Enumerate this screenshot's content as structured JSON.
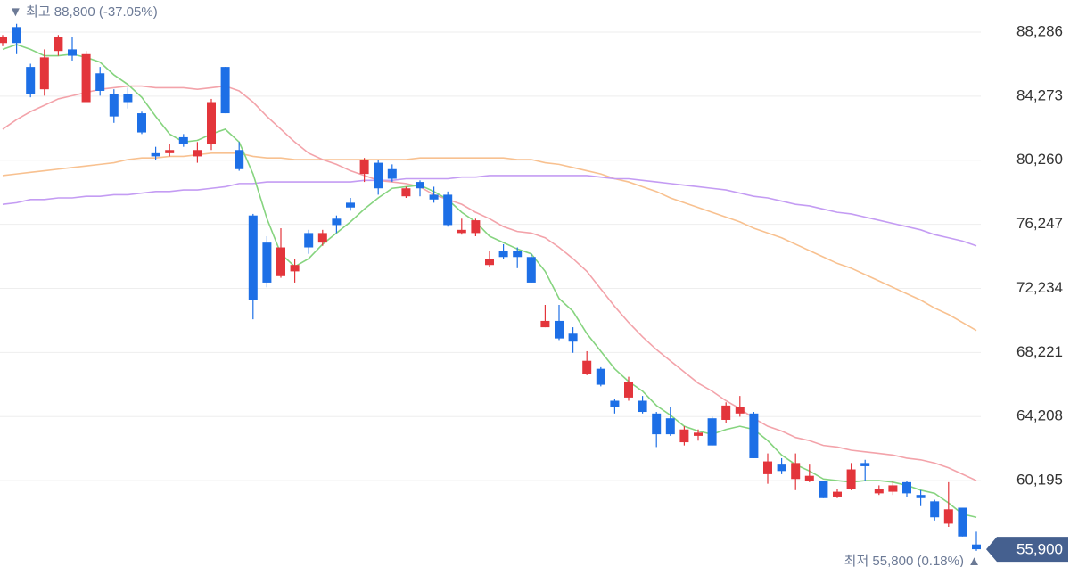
{
  "chart_data": {
    "type": "candlestick",
    "high_label": "▼ 최고 88,800 (-37.05%)",
    "low_label": "최저 55,800 (0.18%) ▲",
    "current_price": {
      "value": 55900,
      "label": "55,900"
    },
    "up_color": "#e3353b",
    "down_color": "#1d6fe6",
    "grid": true,
    "ylim": [
      54788,
      90293
    ],
    "yticks": [
      {
        "value": 60195,
        "label": "60,195"
      },
      {
        "value": 64208,
        "label": "64,208"
      },
      {
        "value": 68221,
        "label": "68,221"
      },
      {
        "value": 72234,
        "label": "72,234"
      },
      {
        "value": 76247,
        "label": "76,247"
      },
      {
        "value": 80260,
        "label": "80,260"
      },
      {
        "value": 84273,
        "label": "84,273"
      },
      {
        "value": 88286,
        "label": "88,286"
      }
    ],
    "open": [
      87600,
      88600,
      86100,
      84700,
      87100,
      87200,
      83900,
      85700,
      84400,
      84400,
      83200,
      80700,
      80700,
      81700,
      80500,
      81300,
      86100,
      80900,
      76800,
      75100,
      73000,
      73300,
      75700,
      75100,
      76600,
      77600,
      79400,
      80100,
      79700,
      78000,
      78900,
      78100,
      78100,
      75700,
      75700,
      73700,
      74600,
      74600,
      74200,
      69800,
      70200,
      69400,
      66900,
      67200,
      65200,
      65400,
      65200,
      64400,
      64100,
      62600,
      63000,
      64100,
      64000,
      64400,
      64400,
      60600,
      61200,
      60300,
      60200,
      60200,
      59200,
      59700,
      61300,
      59400,
      59500,
      60100,
      59300,
      58900,
      57500,
      58500,
      56200
    ],
    "high": [
      88100,
      88800,
      86300,
      87200,
      88100,
      88000,
      87100,
      86100,
      84700,
      84800,
      83300,
      81100,
      81300,
      81900,
      81400,
      84100,
      86100,
      81400,
      76900,
      75500,
      76000,
      74100,
      75900,
      75900,
      76800,
      77900,
      80400,
      80300,
      80000,
      78600,
      79000,
      78600,
      78300,
      76600,
      76600,
      74600,
      75000,
      74800,
      74400,
      71200,
      71200,
      69800,
      68300,
      67300,
      65300,
      66700,
      65500,
      64500,
      64800,
      63600,
      63400,
      64200,
      65100,
      65500,
      64500,
      61900,
      61600,
      61900,
      61200,
      60200,
      59700,
      61300,
      61500,
      59900,
      60200,
      60200,
      59600,
      59000,
      60100,
      58500,
      57000
    ],
    "low": [
      87400,
      86900,
      84200,
      84300,
      86800,
      86500,
      83900,
      84300,
      82600,
      83500,
      81900,
      80300,
      80500,
      81100,
      80100,
      80900,
      83200,
      79600,
      70300,
      72300,
      72900,
      72600,
      74400,
      74900,
      75700,
      77100,
      78900,
      78100,
      78900,
      77900,
      78000,
      77600,
      76100,
      75600,
      75500,
      73600,
      74100,
      73500,
      72600,
      69800,
      69000,
      68200,
      66800,
      66100,
      64400,
      65200,
      64400,
      62300,
      63000,
      62400,
      62700,
      62400,
      63800,
      64200,
      61600,
      60000,
      60600,
      59600,
      60100,
      59100,
      59100,
      59600,
      60200,
      59300,
      59300,
      59200,
      58600,
      57700,
      57300,
      56700,
      55800
    ],
    "close": [
      88000,
      87600,
      84400,
      86700,
      88000,
      86800,
      86900,
      84600,
      83000,
      83900,
      82000,
      80500,
      80900,
      81300,
      80900,
      83900,
      83200,
      79700,
      71500,
      72600,
      74800,
      73700,
      74800,
      75700,
      76200,
      77300,
      80300,
      78500,
      79100,
      78500,
      78500,
      77800,
      76200,
      75900,
      76500,
      74100,
      74200,
      74200,
      72600,
      70200,
      69100,
      68900,
      67700,
      66200,
      64800,
      66400,
      64500,
      63100,
      63100,
      63400,
      63200,
      62400,
      64900,
      64800,
      61600,
      61400,
      60800,
      61300,
      60500,
      59100,
      59500,
      60900,
      61100,
      59700,
      59900,
      59400,
      59100,
      57900,
      58400,
      56700,
      55900
    ],
    "series": [
      {
        "color": "#f8c190",
        "values": [
          79300,
          79400,
          79500,
          79600,
          79700,
          79800,
          79900,
          80000,
          80100,
          80300,
          80400,
          80400,
          80500,
          80500,
          80600,
          80700,
          80700,
          80700,
          80500,
          80400,
          80400,
          80300,
          80300,
          80300,
          80300,
          80300,
          80300,
          80300,
          80300,
          80300,
          80400,
          80400,
          80400,
          80400,
          80400,
          80400,
          80400,
          80300,
          80300,
          80100,
          80000,
          79800,
          79600,
          79400,
          79100,
          78900,
          78600,
          78300,
          77900,
          77600,
          77300,
          77000,
          76700,
          76400,
          76000,
          75700,
          75400,
          75000,
          74600,
          74200,
          73800,
          73500,
          73100,
          72700,
          72300,
          71900,
          71500,
          71000,
          70600,
          70100,
          69600
        ]
      },
      {
        "color": "#c49cf3",
        "values": [
          77500,
          77600,
          77800,
          77800,
          77900,
          77900,
          78000,
          78000,
          78100,
          78100,
          78200,
          78300,
          78300,
          78400,
          78400,
          78500,
          78600,
          78800,
          78800,
          78900,
          78900,
          78900,
          78900,
          78900,
          78900,
          78900,
          79000,
          79000,
          79000,
          79100,
          79100,
          79100,
          79100,
          79200,
          79200,
          79300,
          79300,
          79300,
          79300,
          79300,
          79300,
          79300,
          79300,
          79200,
          79100,
          79100,
          79000,
          78900,
          78800,
          78700,
          78600,
          78500,
          78400,
          78200,
          78000,
          77900,
          77700,
          77500,
          77400,
          77200,
          77000,
          76900,
          76700,
          76500,
          76300,
          76100,
          75900,
          75600,
          75400,
          75200,
          74900
        ]
      },
      {
        "color": "#f3a3aa",
        "values": [
          82200,
          82800,
          83300,
          83700,
          84100,
          84300,
          84500,
          84700,
          84800,
          84900,
          84900,
          84800,
          84800,
          84800,
          84700,
          84800,
          84900,
          84600,
          83900,
          83000,
          82200,
          81400,
          80700,
          80300,
          80000,
          79600,
          79300,
          79000,
          78900,
          78800,
          78600,
          78100,
          77800,
          77500,
          77000,
          76600,
          76100,
          75800,
          75700,
          75400,
          74800,
          74100,
          73300,
          72200,
          71100,
          70100,
          69200,
          68400,
          67700,
          67000,
          66300,
          65800,
          65200,
          64700,
          64100,
          63600,
          63300,
          62900,
          62700,
          62400,
          62300,
          62100,
          62000,
          61900,
          61800,
          61600,
          61500,
          61300,
          61000,
          60600,
          60200
        ]
      },
      {
        "color": "#86d47f",
        "values": [
          87200,
          87500,
          87200,
          86800,
          86800,
          86900,
          86700,
          86400,
          85600,
          85000,
          84200,
          83000,
          81900,
          81400,
          81500,
          81900,
          82200,
          81400,
          79400,
          76600,
          74400,
          73600,
          74100,
          75000,
          75700,
          76400,
          77200,
          77900,
          78500,
          78600,
          78700,
          78300,
          77800,
          77000,
          76400,
          75500,
          75100,
          74700,
          74400,
          73300,
          71600,
          70800,
          69400,
          68300,
          67200,
          66400,
          65800,
          64900,
          64300,
          63600,
          63300,
          63100,
          63400,
          63600,
          63400,
          62700,
          61800,
          61200,
          60800,
          60300,
          60200,
          60100,
          60200,
          60200,
          60100,
          59900,
          59600,
          59400,
          58800,
          58100,
          57900
        ]
      }
    ]
  }
}
